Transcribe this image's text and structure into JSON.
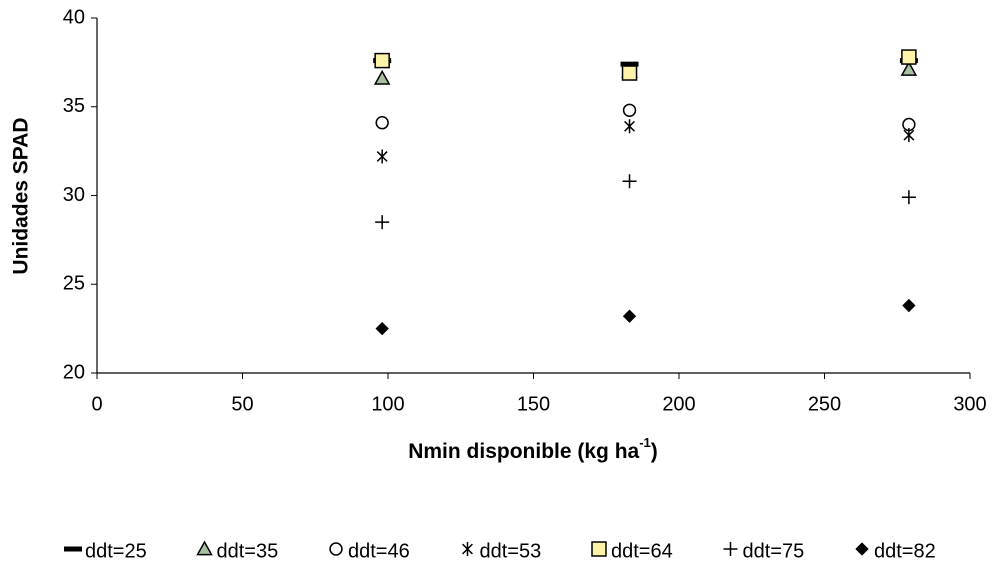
{
  "chart_data": {
    "type": "scatter",
    "y_label": "Unidades SPAD",
    "x_label": {
      "text": "Nmin disponible (kg ha",
      "superscript": "-1",
      "tail": ")"
    },
    "x": [
      98,
      183,
      279
    ],
    "xlim": [
      0,
      300
    ],
    "xticks": [
      0,
      50,
      100,
      150,
      200,
      250,
      300
    ],
    "ylim": [
      20,
      40
    ],
    "yticks": [
      20,
      25,
      30,
      35,
      40
    ],
    "grid": false,
    "legend": "bottom",
    "series": [
      {
        "name": "ddt=25",
        "marker": "dash",
        "color": "#000000",
        "fill": "#000000",
        "values": [
          37.6,
          37.4,
          37.6
        ]
      },
      {
        "name": "ddt=35",
        "marker": "triangle",
        "color": "#000000",
        "fill": "#a8bfa0",
        "values": [
          36.6,
          37.0,
          37.1
        ]
      },
      {
        "name": "ddt=46",
        "marker": "circle",
        "color": "#000000",
        "fill": "#ffffff",
        "values": [
          34.1,
          34.8,
          34.0
        ]
      },
      {
        "name": "ddt=53",
        "marker": "star",
        "color": "#000000",
        "fill": "none",
        "values": [
          32.2,
          33.9,
          33.4
        ]
      },
      {
        "name": "ddt=64",
        "marker": "square",
        "color": "#000000",
        "fill": "#fdf3a8",
        "values": [
          37.6,
          36.9,
          37.8
        ]
      },
      {
        "name": "ddt=75",
        "marker": "plus",
        "color": "#000000",
        "fill": "none",
        "values": [
          28.5,
          30.8,
          29.9
        ]
      },
      {
        "name": "ddt=82",
        "marker": "diamond",
        "color": "#000000",
        "fill": "#000000",
        "values": [
          22.5,
          23.2,
          23.8
        ]
      }
    ]
  }
}
